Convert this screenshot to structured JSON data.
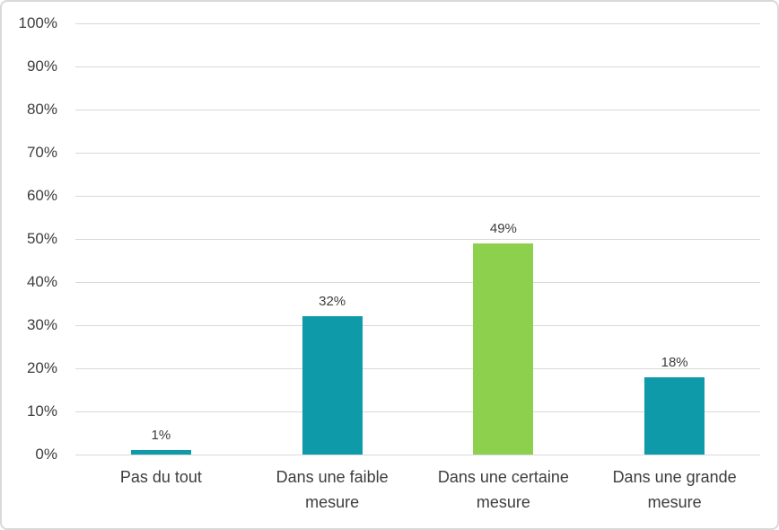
{
  "chart_data": {
    "type": "bar",
    "categories": [
      "Pas du tout",
      "Dans une faible mesure",
      "Dans une certaine mesure",
      "Dans une grande mesure"
    ],
    "values": [
      1,
      32,
      49,
      18
    ],
    "value_labels": [
      "1%",
      "32%",
      "49%",
      "18%"
    ],
    "bar_colors": [
      "#0f9aa9",
      "#0f9aa9",
      "#8dd04e",
      "#0f9aa9"
    ],
    "title": "",
    "xlabel": "",
    "ylabel": "",
    "ylim": [
      0,
      100
    ],
    "y_tick_step": 10,
    "y_tick_labels": [
      "0%",
      "10%",
      "20%",
      "30%",
      "40%",
      "50%",
      "60%",
      "70%",
      "80%",
      "90%",
      "100%"
    ],
    "grid": true,
    "legend_position": "none"
  },
  "colors": {
    "teal": "#0f9aa9",
    "green": "#8dd04e",
    "gridline": "#d9d9d9",
    "text": "#3d3d3d",
    "frame_border": "#d9d9d9",
    "background": "#ffffff"
  }
}
